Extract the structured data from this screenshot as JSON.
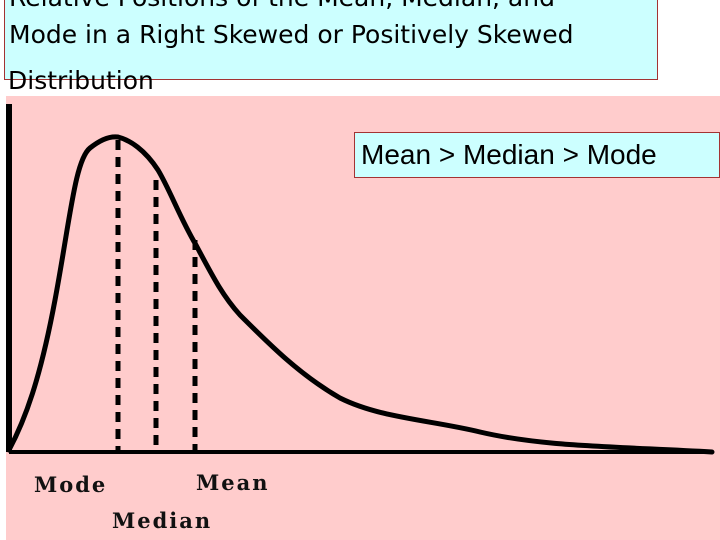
{
  "title": {
    "lines": [
      "Relative Positions of the Mean, Median, and",
      "Mode in a Right Skewed or Positively Skewed"
    ],
    "overflow_line": "Distribution"
  },
  "relation_text": "Mean > Median > Mode",
  "labels": {
    "mode": "Mode",
    "median": "Median",
    "mean": "Mean"
  },
  "colors": {
    "title_bg": "#ccffff",
    "plot_bg": "#ffcccc",
    "border": "#a33333",
    "curve": "#000000"
  }
}
